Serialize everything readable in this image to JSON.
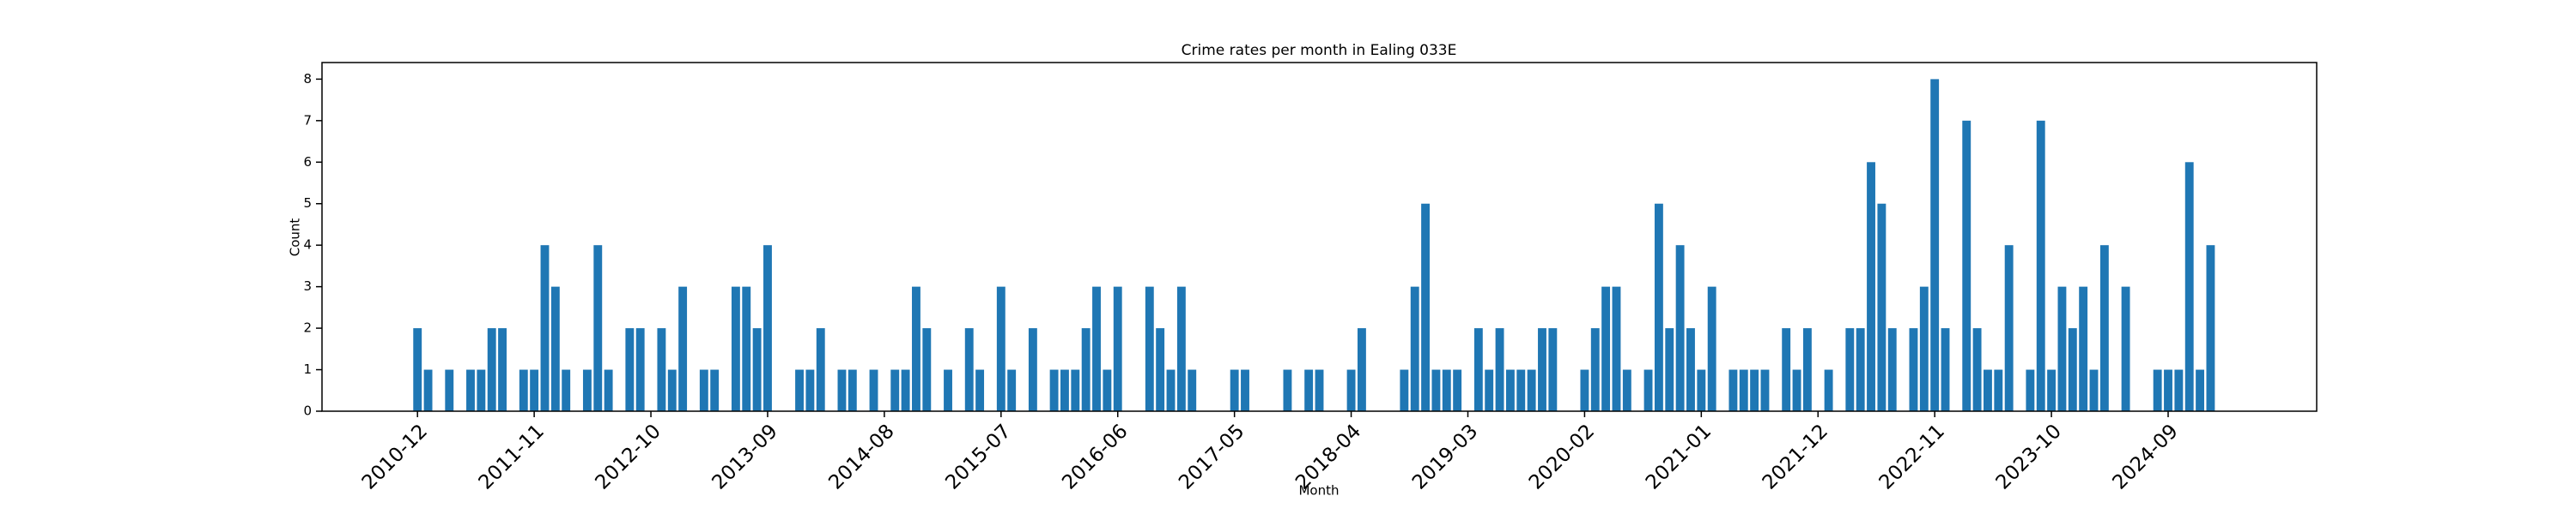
{
  "chart_data": {
    "type": "bar",
    "title": "Crime rates per month in Ealing 033E",
    "x_label": "Month",
    "y_label": "Count",
    "color": "#1f77b4",
    "x": [
      "2010-12",
      "2011-01",
      "2011-03",
      "2011-05",
      "2011-06",
      "2011-07",
      "2011-08",
      "2011-10",
      "2011-11",
      "2011-12",
      "2012-01",
      "2012-02",
      "2012-04",
      "2012-05",
      "2012-06",
      "2012-08",
      "2012-09",
      "2012-11",
      "2012-12",
      "2013-01",
      "2013-03",
      "2013-04",
      "2013-06",
      "2013-07",
      "2013-08",
      "2013-09",
      "2013-12",
      "2014-01",
      "2014-02",
      "2014-04",
      "2014-05",
      "2014-07",
      "2014-09",
      "2014-10",
      "2014-11",
      "2014-12",
      "2015-02",
      "2015-04",
      "2015-05",
      "2015-07",
      "2015-08",
      "2015-10",
      "2015-12",
      "2016-01",
      "2016-02",
      "2016-03",
      "2016-04",
      "2016-05",
      "2016-06",
      "2016-09",
      "2016-10",
      "2016-11",
      "2016-12",
      "2017-01",
      "2017-05",
      "2017-06",
      "2017-10",
      "2017-12",
      "2018-01",
      "2018-04",
      "2018-05",
      "2018-09",
      "2018-10",
      "2018-11",
      "2018-12",
      "2019-01",
      "2019-02",
      "2019-04",
      "2019-05",
      "2019-06",
      "2019-07",
      "2019-08",
      "2019-09",
      "2019-10",
      "2019-11",
      "2020-02",
      "2020-03",
      "2020-04",
      "2020-05",
      "2020-06",
      "2020-08",
      "2020-09",
      "2020-10",
      "2020-11",
      "2020-12",
      "2021-01",
      "2021-02",
      "2021-04",
      "2021-05",
      "2021-06",
      "2021-07",
      "2021-09",
      "2021-10",
      "2021-11",
      "2022-01",
      "2022-03",
      "2022-04",
      "2022-05",
      "2022-06",
      "2022-07",
      "2022-09",
      "2022-10",
      "2022-11",
      "2022-12",
      "2023-02",
      "2023-03",
      "2023-04",
      "2023-05",
      "2023-06",
      "2023-08",
      "2023-09",
      "2023-10",
      "2023-11",
      "2023-12",
      "2024-01",
      "2024-02",
      "2024-03",
      "2024-05",
      "2024-08",
      "2024-09",
      "2024-10",
      "2024-11",
      "2024-12",
      "2025-01"
    ],
    "values": [
      2,
      1,
      1,
      1,
      1,
      2,
      2,
      1,
      1,
      4,
      3,
      1,
      1,
      4,
      1,
      2,
      2,
      2,
      1,
      3,
      1,
      1,
      3,
      3,
      2,
      4,
      1,
      1,
      2,
      1,
      1,
      1,
      1,
      1,
      3,
      2,
      1,
      2,
      1,
      3,
      1,
      2,
      1,
      1,
      1,
      2,
      3,
      1,
      3,
      3,
      2,
      1,
      3,
      1,
      1,
      1,
      1,
      1,
      1,
      1,
      2,
      1,
      3,
      5,
      1,
      1,
      1,
      2,
      1,
      2,
      1,
      1,
      1,
      2,
      2,
      1,
      2,
      3,
      3,
      1,
      1,
      5,
      2,
      4,
      2,
      1,
      3,
      1,
      1,
      1,
      1,
      2,
      1,
      2,
      1,
      2,
      2,
      6,
      5,
      2,
      2,
      3,
      8,
      2,
      7,
      2,
      1,
      1,
      4,
      1,
      7,
      1,
      3,
      2,
      3,
      1,
      4,
      3,
      1,
      1,
      1,
      6,
      1,
      4
    ],
    "xlim": [
      "2010-03",
      "2025-11"
    ],
    "xticks": [
      "2010-12",
      "2011-11",
      "2012-10",
      "2013-09",
      "2014-08",
      "2015-07",
      "2016-06",
      "2017-05",
      "2018-04",
      "2019-03",
      "2020-02",
      "2021-01",
      "2021-12",
      "2022-11",
      "2023-10",
      "2024-09"
    ],
    "ylim": [
      0,
      8.4
    ],
    "yticks": [
      0,
      1,
      2,
      3,
      4,
      5,
      6,
      7,
      8
    ]
  }
}
